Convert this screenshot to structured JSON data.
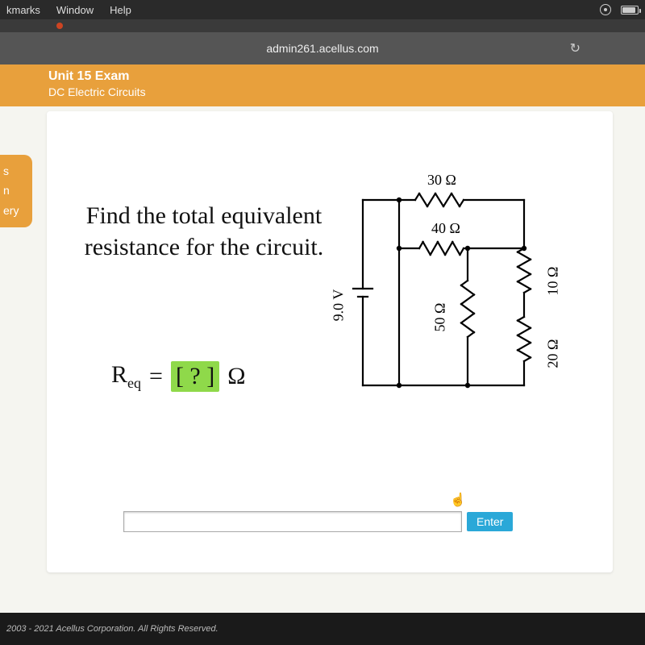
{
  "menubar": {
    "items": [
      "kmarks",
      "Window",
      "Help"
    ]
  },
  "browser": {
    "url": "admin261.acellus.com"
  },
  "traffic_colors": [
    "#3a3a3a",
    "#3a3a3a",
    "#2ecc40"
  ],
  "unit": {
    "title": "Unit 15 Exam",
    "subtitle": "DC Electric Circuits"
  },
  "side_tab": {
    "line1": "s",
    "line2": "n",
    "line3": "ery"
  },
  "question": {
    "text": "Find the total equivalent resistance for the circuit.",
    "formula_lhs_var": "R",
    "formula_lhs_sub": "eq",
    "formula_equals": "=",
    "answer_placeholder": "[ ? ]",
    "formula_unit": "Ω"
  },
  "circuit": {
    "stroke": "#000000",
    "stroke_width": 2.2,
    "font_family": "Georgia, serif",
    "label_fontsize": 18,
    "components": {
      "r_top": {
        "label": "30 Ω"
      },
      "r_mid": {
        "label": "40 Ω"
      },
      "r_left_v": {
        "label": "50 Ω"
      },
      "r_right_top": {
        "label": "10 Ω"
      },
      "r_right_bot": {
        "label": "20 Ω"
      },
      "battery": {
        "label": "9.0 V"
      }
    }
  },
  "controls": {
    "enter_label": "Enter"
  },
  "footer": {
    "copyright": "2003 - 2021 Acellus Corporation.  All Rights Reserved."
  },
  "colors": {
    "header_bg": "#e8a03c",
    "enter_bg": "#2aa8d8",
    "answer_box_bg": "#8fd94a"
  }
}
